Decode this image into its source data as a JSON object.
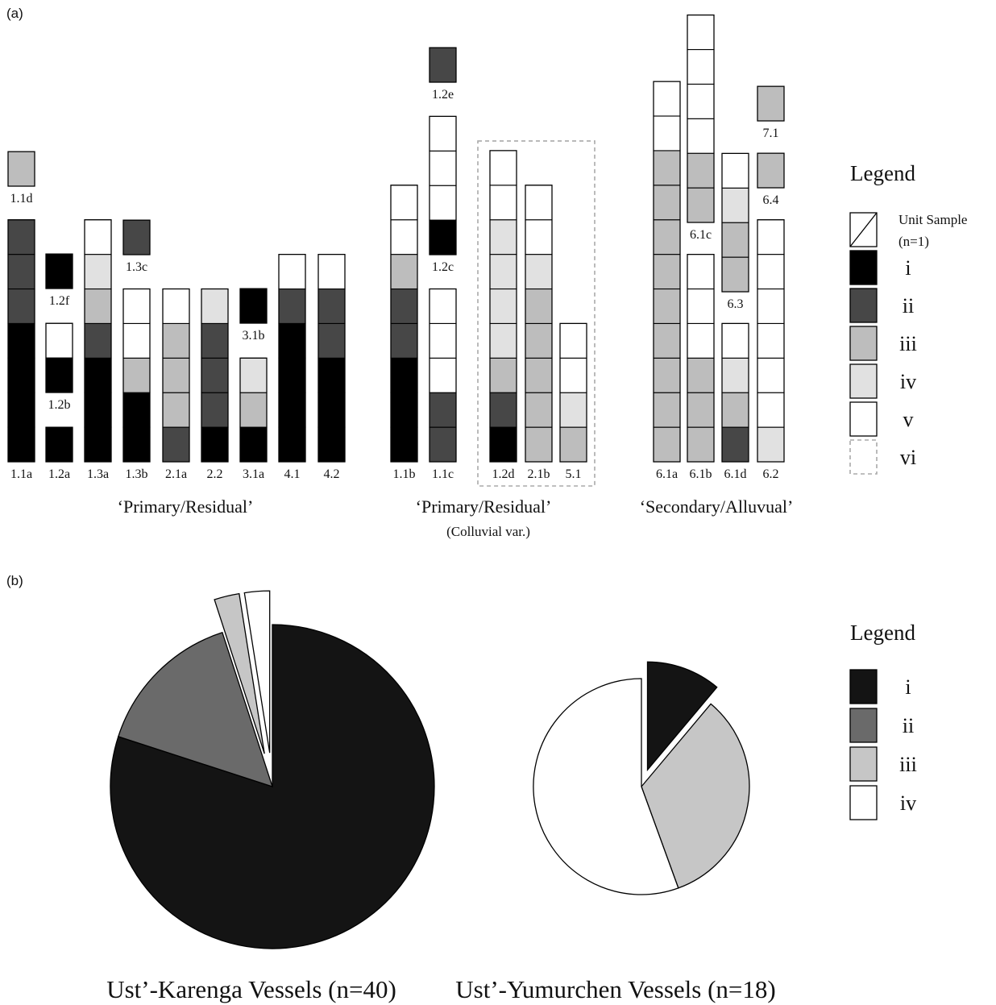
{
  "panels": {
    "a": "(a)",
    "b": "(b)"
  },
  "colors": {
    "i": "#000000",
    "ii": "#474747",
    "iii": "#bdbdbd",
    "iv": "#e1e1e1",
    "v": "#ffffff",
    "pie_i": "#141414",
    "pie_ii": "#6a6a6a",
    "pie_iii": "#c6c6c6",
    "pie_iv": "#ffffff",
    "vi_border": "#aaaaaa"
  },
  "chart_data": [
    {
      "type": "bar",
      "stacked": true,
      "unit_value": "n=1",
      "categories_order": [
        "i",
        "ii",
        "iii",
        "iv",
        "v"
      ],
      "groups": [
        {
          "label": "‘Primary/Residual’",
          "sublabel": "",
          "columns": [
            {
              "label": "1.1a",
              "stack": [
                "i",
                "i",
                "i",
                "i",
                "ii",
                "ii",
                "ii"
              ]
            },
            {
              "label": "1.1d",
              "stack": [
                "iii"
              ]
            },
            {
              "label": "1.2a",
              "stack": [
                "i"
              ]
            },
            {
              "label": "1.2b",
              "stack": [
                "i",
                "v"
              ]
            },
            {
              "label": "1.2f",
              "stack": [
                "i"
              ]
            },
            {
              "label": "1.3a",
              "stack": [
                "i",
                "i",
                "i",
                "ii",
                "iii",
                "iv",
                "v"
              ]
            },
            {
              "label": "1.3c",
              "stack": [
                "ii"
              ]
            },
            {
              "label": "1.3b",
              "stack": [
                "i",
                "i",
                "iii",
                "v",
                "v"
              ]
            },
            {
              "label": "2.1a",
              "stack": [
                "ii",
                "iii",
                "iii",
                "iii",
                "v"
              ]
            },
            {
              "label": "2.2",
              "stack": [
                "i",
                "ii",
                "ii",
                "ii",
                "iv"
              ]
            },
            {
              "label": "3.1a",
              "stack": [
                "i",
                "iii",
                "iv"
              ]
            },
            {
              "label": "3.1b",
              "stack": [
                "i"
              ]
            },
            {
              "label": "4.1",
              "stack": [
                "i",
                "i",
                "i",
                "i",
                "ii",
                "v"
              ]
            },
            {
              "label": "4.2",
              "stack": [
                "i",
                "i",
                "i",
                "ii",
                "ii",
                "v"
              ]
            }
          ]
        },
        {
          "label": "‘Primary/Residual’",
          "sublabel": "(Colluvial var.)",
          "columns": [
            {
              "label": "1.1b",
              "stack": [
                "i",
                "i",
                "i",
                "ii",
                "ii",
                "iii",
                "v",
                "v"
              ]
            },
            {
              "label": "1.1c",
              "stack": [
                "ii",
                "ii",
                "v",
                "v",
                "v"
              ]
            },
            {
              "label": "1.2c",
              "stack": [
                "i",
                "v",
                "v",
                "v"
              ]
            },
            {
              "label": "1.2e",
              "stack": [
                "ii"
              ]
            },
            {
              "label": "1.2d",
              "stack": [
                "i",
                "ii",
                "iii",
                "iv",
                "iv",
                "iv",
                "iv",
                "v",
                "v"
              ],
              "vi": true
            },
            {
              "label": "2.1b",
              "stack": [
                "iii",
                "iii",
                "iii",
                "iii",
                "iii",
                "iv",
                "v",
                "v"
              ],
              "vi": true
            },
            {
              "label": "5.1",
              "stack": [
                "iii",
                "iv",
                "v",
                "v"
              ],
              "vi": true
            }
          ]
        },
        {
          "label": "‘Secondary/Alluvual’",
          "sublabel": "",
          "columns": [
            {
              "label": "6.1a",
              "stack": [
                "iii",
                "iii",
                "iii",
                "iii",
                "iii",
                "iii",
                "iii",
                "iii",
                "iii",
                "v",
                "v"
              ]
            },
            {
              "label": "6.1b",
              "stack": [
                "iii",
                "iii",
                "iii",
                "v",
                "v",
                "v"
              ]
            },
            {
              "label": "6.1c",
              "stack": [
                "iii",
                "iii",
                "v",
                "v",
                "v",
                "v"
              ]
            },
            {
              "label": "6.1d",
              "stack": [
                "ii",
                "iii",
                "iv",
                "v"
              ]
            },
            {
              "label": "6.3",
              "stack": [
                "iii",
                "iii",
                "iv",
                "v"
              ]
            },
            {
              "label": "6.2",
              "stack": [
                "iv",
                "v",
                "v",
                "v",
                "v",
                "v",
                "v"
              ]
            },
            {
              "label": "6.4",
              "stack": [
                "iii"
              ]
            },
            {
              "label": "7.1",
              "stack": [
                "iii"
              ]
            }
          ]
        }
      ],
      "legend": {
        "title": "Legend",
        "unit_label": [
          "Unit Sample",
          "(n=1)"
        ],
        "items": [
          "i",
          "ii",
          "iii",
          "iv",
          "v",
          "vi"
        ]
      }
    },
    {
      "type": "pie",
      "charts": [
        {
          "title": "Ust’-Karenga Vessels (n=40)",
          "slices": [
            {
              "category": "i",
              "value": 32
            },
            {
              "category": "ii",
              "value": 6
            },
            {
              "category": "iii",
              "value": 1,
              "exploded": true
            },
            {
              "category": "iv",
              "value": 1,
              "exploded": true
            }
          ]
        },
        {
          "title": "Ust’-Yumurchen Vessels  (n=18)",
          "slices": [
            {
              "category": "i",
              "value": 2,
              "exploded": true
            },
            {
              "category": "iii",
              "value": 6
            },
            {
              "category": "iv",
              "value": 10
            }
          ]
        }
      ],
      "legend": {
        "title": "Legend",
        "items": [
          "i",
          "ii",
          "iii",
          "iv"
        ]
      }
    }
  ]
}
